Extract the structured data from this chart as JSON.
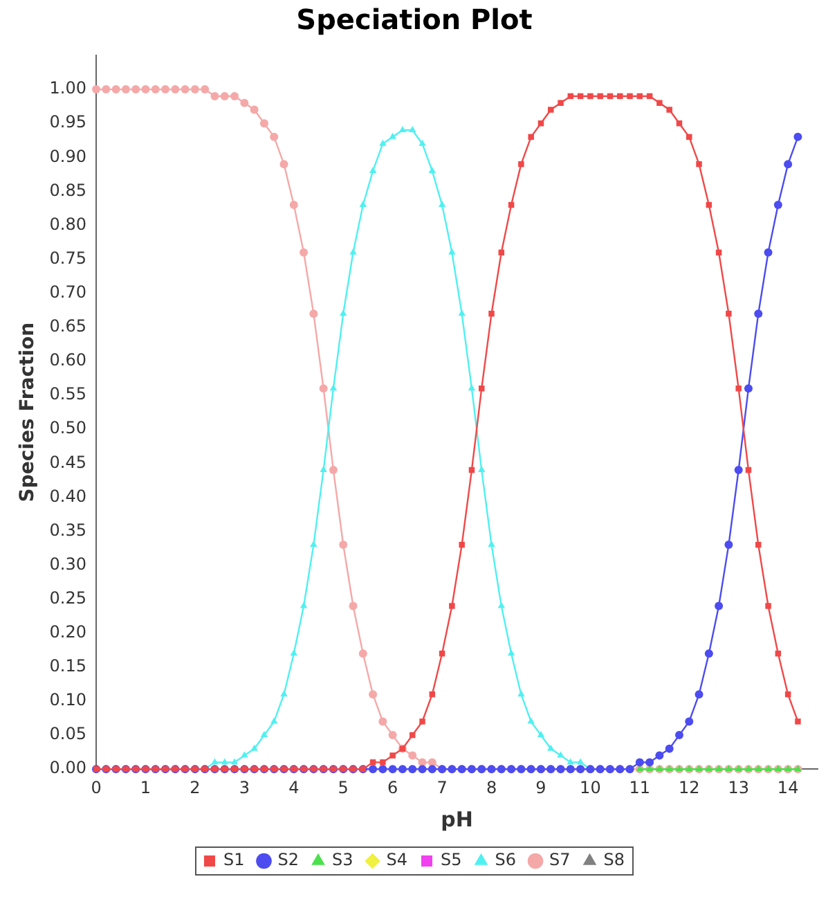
{
  "chart_data": {
    "type": "line",
    "title": "Speciation Plot",
    "xlabel": "pH",
    "ylabel": "Species Fraction",
    "x": [
      0,
      0.2,
      0.4,
      0.6,
      0.8,
      1,
      1.2,
      1.4,
      1.6,
      1.8,
      2,
      2.2,
      2.4,
      2.6,
      2.8,
      3,
      3.2,
      3.4,
      3.6,
      3.8,
      4,
      4.2,
      4.4,
      4.6,
      4.8,
      5,
      5.2,
      5.4,
      5.6,
      5.8,
      6,
      6.2,
      6.4,
      6.6,
      6.8,
      7,
      7.2,
      7.4,
      7.6,
      7.8,
      8,
      8.2,
      8.4,
      8.6,
      8.8,
      9,
      9.2,
      9.4,
      9.6,
      9.8,
      10,
      10.2,
      10.4,
      10.6,
      10.8,
      11,
      11.2,
      11.4,
      11.6,
      11.8,
      12,
      12.2,
      12.4,
      12.6,
      12.8,
      13,
      13.2,
      13.4,
      13.6,
      13.8,
      14,
      14.2
    ],
    "xlim": [
      0,
      14.6
    ],
    "xticks": [
      0,
      1,
      2,
      3,
      4,
      5,
      6,
      7,
      8,
      9,
      10,
      11,
      12,
      13,
      14
    ],
    "ylim": [
      0,
      1.05
    ],
    "yticks": [
      {
        "value": 0,
        "label": "0.00"
      },
      {
        "value": 0.05,
        "label": "0.05"
      },
      {
        "value": 0.1,
        "label": "0.10"
      },
      {
        "value": 0.15,
        "label": "0.15"
      },
      {
        "value": 0.2,
        "label": "0.20"
      },
      {
        "value": 0.25,
        "label": "0.25"
      },
      {
        "value": 0.3,
        "label": "0.30"
      },
      {
        "value": 0.35,
        "label": "0.35"
      },
      {
        "value": 0.4,
        "label": "0.40"
      },
      {
        "value": 0.45,
        "label": "0.45"
      },
      {
        "value": 0.5,
        "label": "0.50"
      },
      {
        "value": 0.55,
        "label": "0.55"
      },
      {
        "value": 0.6,
        "label": "0.60"
      },
      {
        "value": 0.65,
        "label": "0.65"
      },
      {
        "value": 0.7,
        "label": "0.70"
      },
      {
        "value": 0.75,
        "label": "0.75"
      },
      {
        "value": 0.8,
        "label": "0.80"
      },
      {
        "value": 0.85,
        "label": "0.85"
      },
      {
        "value": 0.9,
        "label": "0.90"
      },
      {
        "value": 0.95,
        "label": "0.95"
      },
      {
        "value": 1,
        "label": "1.00"
      }
    ],
    "grid": false,
    "legend": "bottom",
    "line_style": "solid",
    "series": [
      {
        "name": "S1",
        "color": "#f04848",
        "marker": "square",
        "values": [
          0,
          0,
          0,
          0,
          0,
          0,
          0,
          0,
          0,
          0,
          0,
          0,
          0,
          0,
          0,
          0,
          0,
          0,
          0,
          0,
          0,
          0,
          0,
          0,
          0,
          0,
          0,
          0,
          0.01,
          0.01,
          0.02,
          0.03,
          0.05,
          0.07,
          0.11,
          0.17,
          0.24,
          0.33,
          0.44,
          0.56,
          0.67,
          0.76,
          0.83,
          0.89,
          0.93,
          0.95,
          0.97,
          0.98,
          0.99,
          0.99,
          0.99,
          0.99,
          0.99,
          0.99,
          0.99,
          0.99,
          0.99,
          0.98,
          0.97,
          0.95,
          0.93,
          0.89,
          0.83,
          0.76,
          0.67,
          0.56,
          0.44,
          0.33,
          0.24,
          0.17,
          0.11,
          0.07
        ]
      },
      {
        "name": "S2",
        "color": "#4c4cf0",
        "marker": "circle",
        "values": [
          0,
          0,
          0,
          0,
          0,
          0,
          0,
          0,
          0,
          0,
          0,
          0,
          0,
          0,
          0,
          0,
          0,
          0,
          0,
          0,
          0,
          0,
          0,
          0,
          0,
          0,
          0,
          0,
          0,
          0,
          0,
          0,
          0,
          0,
          0,
          0,
          0,
          0,
          0,
          0,
          0,
          0,
          0,
          0,
          0,
          0,
          0,
          0,
          0,
          0,
          0,
          0,
          0,
          0,
          0,
          0.01,
          0.01,
          0.02,
          0.03,
          0.05,
          0.07,
          0.11,
          0.17,
          0.24,
          0.33,
          0.44,
          0.56,
          0.67,
          0.76,
          0.83,
          0.89,
          0.93
        ]
      },
      {
        "name": "S3",
        "color": "#4ce04c",
        "marker": "triangle",
        "values": [
          null,
          null,
          null,
          null,
          null,
          null,
          null,
          null,
          null,
          null,
          null,
          null,
          null,
          null,
          null,
          null,
          null,
          null,
          null,
          null,
          null,
          null,
          null,
          null,
          null,
          null,
          null,
          null,
          null,
          null,
          null,
          null,
          null,
          null,
          null,
          null,
          null,
          null,
          null,
          null,
          null,
          null,
          null,
          null,
          null,
          null,
          null,
          null,
          null,
          null,
          null,
          null,
          null,
          null,
          null,
          0,
          0,
          0,
          0,
          0,
          0,
          0,
          0,
          0,
          0,
          0,
          0,
          0,
          0,
          0,
          0,
          0
        ]
      },
      {
        "name": "S4",
        "color": "#f0f040",
        "marker": "diamond",
        "values": [
          null,
          null,
          null,
          null,
          null,
          null,
          null,
          null,
          null,
          null,
          null,
          null,
          null,
          null,
          null,
          null,
          null,
          null,
          null,
          null,
          null,
          null,
          null,
          null,
          null,
          null,
          null,
          null,
          null,
          null,
          null,
          null,
          null,
          null,
          null,
          null,
          null,
          null,
          null,
          null,
          null,
          null,
          null,
          null,
          null,
          null,
          null,
          null,
          null,
          null,
          null,
          null,
          null,
          null,
          null,
          null,
          null,
          null,
          null,
          null,
          null,
          null,
          null,
          null,
          null,
          null,
          null,
          null,
          null,
          null,
          null,
          null
        ]
      },
      {
        "name": "S5",
        "color": "#f040f0",
        "marker": "square",
        "values": [
          null,
          null,
          null,
          null,
          null,
          null,
          null,
          null,
          null,
          null,
          null,
          null,
          null,
          null,
          null,
          null,
          null,
          null,
          null,
          null,
          null,
          null,
          null,
          null,
          null,
          null,
          null,
          null,
          null,
          null,
          null,
          null,
          null,
          null,
          null,
          null,
          null,
          null,
          null,
          null,
          null,
          null,
          null,
          null,
          null,
          null,
          null,
          null,
          null,
          null,
          null,
          null,
          null,
          null,
          null,
          null,
          null,
          null,
          null,
          null,
          null,
          null,
          null,
          null,
          null,
          null,
          null,
          null,
          null,
          null,
          null,
          null
        ]
      },
      {
        "name": "S6",
        "color": "#50f0f0",
        "marker": "triangle",
        "values": [
          null,
          null,
          null,
          null,
          null,
          null,
          null,
          null,
          null,
          null,
          0,
          0,
          0.01,
          0.01,
          0.01,
          0.02,
          0.03,
          0.05,
          0.07,
          0.11,
          0.17,
          0.24,
          0.33,
          0.44,
          0.56,
          0.67,
          0.76,
          0.83,
          0.88,
          0.92,
          0.93,
          0.94,
          0.94,
          0.92,
          0.88,
          0.83,
          0.76,
          0.67,
          0.56,
          0.44,
          0.33,
          0.24,
          0.17,
          0.11,
          0.07,
          0.05,
          0.03,
          0.02,
          0.01,
          0.01,
          0,
          0,
          null,
          null,
          null,
          null,
          null,
          null,
          null,
          null,
          null,
          null,
          null,
          null,
          null,
          null,
          null,
          null,
          null,
          null,
          null,
          null
        ]
      },
      {
        "name": "S7",
        "color": "#f5a8a8",
        "marker": "circle",
        "values": [
          1,
          1,
          1,
          1,
          1,
          1,
          1,
          1,
          1,
          1,
          1,
          1,
          0.99,
          0.99,
          0.99,
          0.98,
          0.97,
          0.95,
          0.93,
          0.89,
          0.83,
          0.76,
          0.67,
          0.56,
          0.44,
          0.33,
          0.24,
          0.17,
          0.11,
          0.07,
          0.05,
          0.03,
          0.02,
          0.01,
          0.01,
          0,
          0,
          0,
          0,
          0,
          0,
          0,
          0,
          0,
          0,
          0,
          0,
          0,
          0,
          0,
          0,
          0,
          0,
          0,
          0,
          0,
          0,
          0,
          0,
          0,
          0,
          0,
          0,
          0,
          0,
          0,
          0,
          0,
          0,
          0,
          0,
          0
        ]
      },
      {
        "name": "S8",
        "color": "#808080",
        "marker": "triangle",
        "values": [
          null,
          null,
          null,
          null,
          null,
          null,
          null,
          null,
          null,
          null,
          null,
          null,
          null,
          null,
          null,
          null,
          null,
          null,
          null,
          null,
          null,
          null,
          null,
          null,
          null,
          null,
          null,
          null,
          null,
          null,
          null,
          null,
          null,
          null,
          null,
          null,
          null,
          null,
          null,
          null,
          null,
          null,
          null,
          null,
          null,
          null,
          null,
          null,
          null,
          null,
          null,
          null,
          null,
          null,
          null,
          null,
          null,
          null,
          null,
          null,
          null,
          null,
          null,
          null,
          null,
          null,
          null,
          null,
          null,
          null,
          null,
          null
        ]
      }
    ]
  }
}
